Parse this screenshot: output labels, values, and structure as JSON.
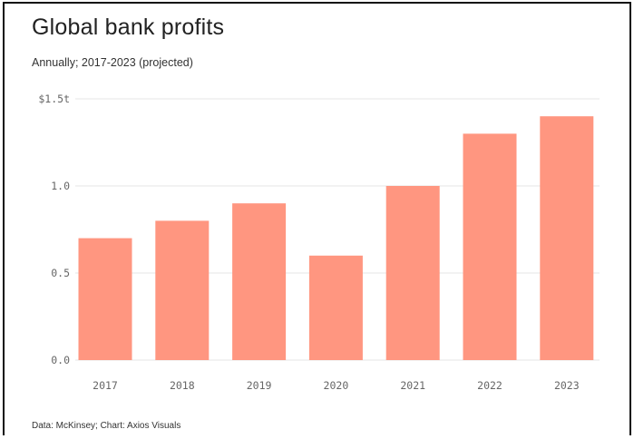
{
  "chart_data": {
    "type": "bar",
    "title": "Global bank profits",
    "subtitle": "Annually; 2017-2023 (projected)",
    "source": "Data: McKinsey; Chart: Axios Visuals",
    "categories": [
      "2017",
      "2018",
      "2019",
      "2020",
      "2021",
      "2022",
      "2023"
    ],
    "values": [
      0.7,
      0.8,
      0.9,
      0.6,
      1.0,
      1.3,
      1.4
    ],
    "yticks": [
      {
        "value": 0,
        "label": "0.0"
      },
      {
        "value": 0.5,
        "label": "0.5"
      },
      {
        "value": 1.0,
        "label": "1.0"
      },
      {
        "value": 1.5,
        "label": "$1.5t"
      }
    ],
    "ylim": [
      0,
      1.5
    ],
    "unit": "trillion USD",
    "grid": true,
    "bar_color": "#ff9680",
    "grid_color": "#e6e6e6"
  }
}
